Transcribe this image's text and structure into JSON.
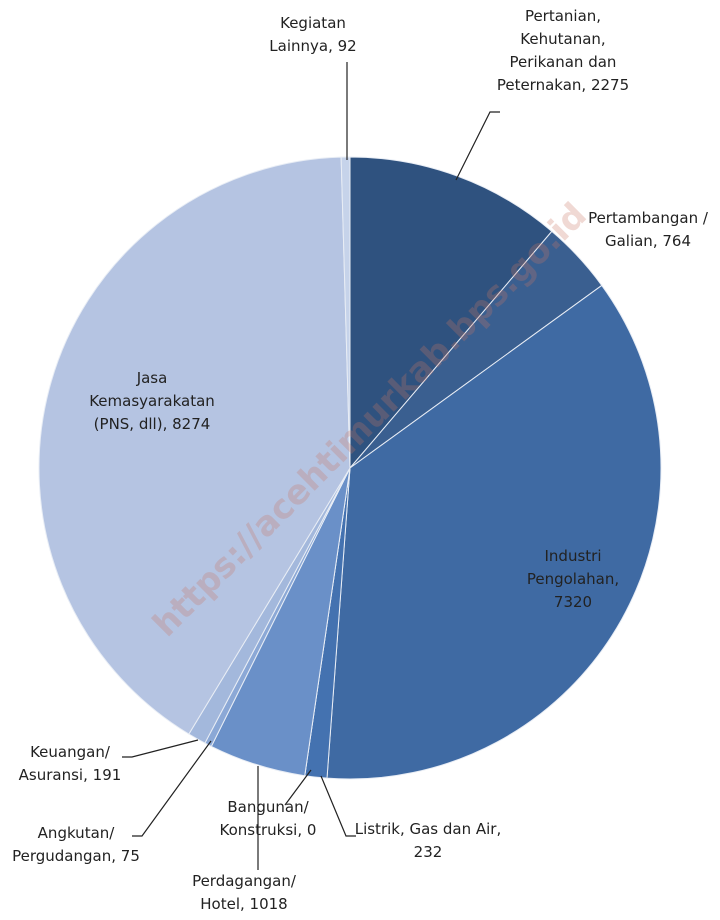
{
  "chart_data": {
    "type": "pie",
    "categories": [
      "Pertanian, Kehutanan, Perikanan dan Peternakan",
      "Pertambangan / Galian",
      "Industri Pengolahan",
      "Listrik, Gas dan Air",
      "Bangunan/ Konstruksi",
      "Perdagangan/ Hotel",
      "Angkutan/ Pergudangan",
      "Keuangan/ Asuransi",
      "Jasa Kemasyarakatan (PNS, dll)",
      "Kegiatan Lainnya"
    ],
    "values": [
      2275,
      764,
      7320,
      232,
      0,
      1018,
      75,
      191,
      8274,
      92
    ],
    "colors": [
      "#2f527f",
      "#3a5f90",
      "#3f6aa3",
      "#4472b0",
      "#4d7cbb",
      "#6a90c8",
      "#8ba8d6",
      "#a3b8dc",
      "#b5c4e2",
      "#c6d3ea"
    ],
    "watermark": "https://acehtimurkab.bps.go.id"
  }
}
